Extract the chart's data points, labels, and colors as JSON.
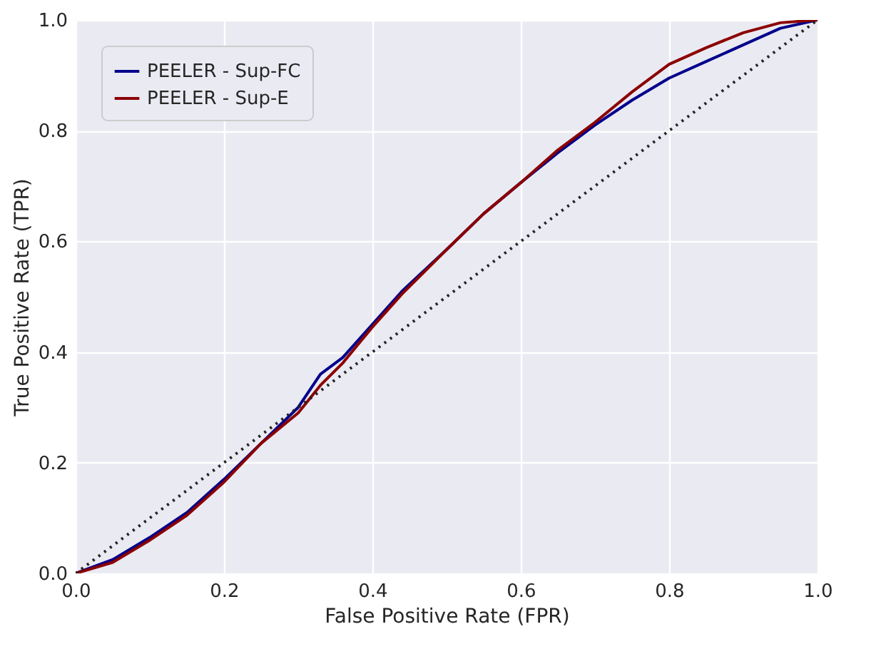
{
  "chart_data": {
    "type": "line",
    "xlabel": "False Positive Rate (FPR)",
    "ylabel": "True Positive Rate (TPR)",
    "x": [
      0,
      0.05,
      0.1,
      0.15,
      0.2,
      0.25,
      0.3,
      0.33,
      0.36,
      0.4,
      0.44,
      0.5,
      0.55,
      0.6,
      0.65,
      0.7,
      0.75,
      0.8,
      0.85,
      0.9,
      0.95,
      1
    ],
    "series": [
      {
        "name": "PEELER - Sup-FC",
        "color": "#00008b",
        "values": [
          0,
          0.025,
          0.065,
          0.11,
          0.17,
          0.235,
          0.3,
          0.36,
          0.39,
          0.45,
          0.51,
          0.585,
          0.65,
          0.706,
          0.76,
          0.81,
          0.855,
          0.895,
          0.925,
          0.955,
          0.985,
          1
        ]
      },
      {
        "name": "PEELER - Sup-E",
        "color": "#8b0000",
        "values": [
          0,
          0.02,
          0.06,
          0.105,
          0.165,
          0.235,
          0.29,
          0.34,
          0.38,
          0.445,
          0.505,
          0.585,
          0.65,
          0.706,
          0.765,
          0.815,
          0.87,
          0.92,
          0.95,
          0.977,
          0.995,
          1
        ]
      },
      {
        "type": "line",
        "color": "#222222",
        "line_style": "dotted",
        "x": [
          0,
          1
        ],
        "values": [
          0,
          1
        ]
      }
    ],
    "xlim": [
      0,
      1
    ],
    "ylim": [
      0,
      1
    ],
    "xticks": [
      {
        "value": 0,
        "label": "0.0"
      },
      0.2,
      0.4,
      0.6,
      0.8,
      {
        "value": 1,
        "label": "1.0"
      }
    ],
    "yticks": [
      {
        "value": 0,
        "label": "0.0"
      },
      0.2,
      0.4,
      0.6,
      0.8,
      {
        "value": 1,
        "label": "1.0"
      }
    ],
    "grid": true,
    "legend": "top left"
  }
}
